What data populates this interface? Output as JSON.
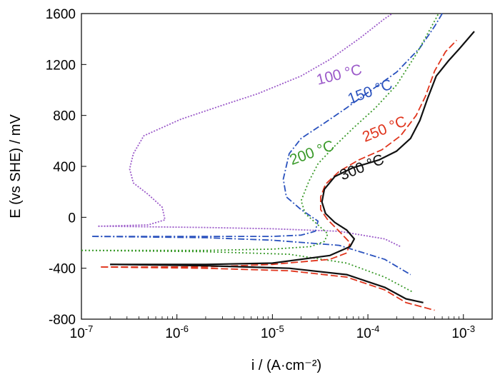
{
  "chart_data": {
    "type": "line",
    "xscale": "log",
    "xlim": [
      1e-07,
      0.002
    ],
    "ylim": [
      -800,
      1600
    ],
    "grid": false,
    "xlabel": "i / (A·cm⁻²)",
    "ylabel": "E (vs SHE) / mV",
    "x_ticks": [
      {
        "value": 1e-07,
        "base": "10",
        "exp": "-7"
      },
      {
        "value": 1e-06,
        "base": "10",
        "exp": "-6"
      },
      {
        "value": 1e-05,
        "base": "10",
        "exp": "-5"
      },
      {
        "value": 0.0001,
        "base": "10",
        "exp": "-4"
      },
      {
        "value": 0.001,
        "base": "10",
        "exp": "-3"
      }
    ],
    "y_ticks": [
      {
        "value": -800,
        "label": "-800"
      },
      {
        "value": -400,
        "label": "-400"
      },
      {
        "value": 0,
        "label": "0"
      },
      {
        "value": 400,
        "label": "400"
      },
      {
        "value": 800,
        "label": "800"
      },
      {
        "value": 1200,
        "label": "1200"
      },
      {
        "value": 1600,
        "label": "1600"
      }
    ],
    "series": [
      {
        "name": "100 °C",
        "color": "#9b59c9",
        "dash": "2,2",
        "label_pos": [
          3e-05,
          1040
        ],
        "label_rotate": -14,
        "anodic": [
          [
            1.5e-07,
            -70
          ],
          [
            5e-07,
            -60
          ],
          [
            7.5e-07,
            -20
          ],
          [
            7e-07,
            80
          ],
          [
            5e-07,
            180
          ],
          [
            3.5e-07,
            270
          ],
          [
            3.2e-07,
            380
          ],
          [
            3.5e-07,
            500
          ],
          [
            4.5e-07,
            640
          ],
          [
            1.1e-06,
            770
          ],
          [
            3e-06,
            880
          ],
          [
            7e-06,
            970
          ],
          [
            2e-05,
            1110
          ],
          [
            4e-05,
            1240
          ],
          [
            8e-05,
            1400
          ],
          [
            0.00015,
            1560
          ],
          [
            0.00018,
            1600
          ]
        ],
        "cathodic": [
          [
            1.5e-07,
            -70
          ],
          [
            2e-06,
            -80
          ],
          [
            1e-05,
            -90
          ],
          [
            5e-05,
            -110
          ],
          [
            0.00015,
            -170
          ],
          [
            0.00022,
            -230
          ]
        ]
      },
      {
        "name": "150 °C",
        "color": "#2a52be",
        "dash": "9,3,2,3",
        "label_pos": [
          6.5e-05,
          890
        ],
        "label_rotate": -20,
        "anodic": [
          [
            1.3e-07,
            -150
          ],
          [
            1e-06,
            -150
          ],
          [
            1e-05,
            -150
          ],
          [
            2e-05,
            -140
          ],
          [
            2.8e-05,
            -110
          ],
          [
            3e-05,
            -30
          ],
          [
            2e-05,
            60
          ],
          [
            1.4e-05,
            160
          ],
          [
            1.3e-05,
            300
          ],
          [
            1.5e-05,
            500
          ],
          [
            2e-05,
            620
          ],
          [
            3.5e-05,
            740
          ],
          [
            6e-05,
            860
          ],
          [
            0.0001,
            980
          ],
          [
            0.0002,
            1140
          ],
          [
            0.00035,
            1330
          ],
          [
            0.0005,
            1500
          ],
          [
            0.0006,
            1600
          ]
        ],
        "cathodic": [
          [
            1.3e-07,
            -150
          ],
          [
            2e-06,
            -160
          ],
          [
            1e-05,
            -180
          ],
          [
            5e-05,
            -220
          ],
          [
            0.00015,
            -330
          ],
          [
            0.00028,
            -450
          ]
        ]
      },
      {
        "name": "200 °C",
        "color": "#3a9a2a",
        "dash": "2,3",
        "label_pos": [
          1.6e-05,
          410
        ],
        "label_rotate": -20,
        "anodic": [
          [
            1e-07,
            -260
          ],
          [
            2e-06,
            -260
          ],
          [
            1e-05,
            -250
          ],
          [
            2.5e-05,
            -230
          ],
          [
            3.5e-05,
            -190
          ],
          [
            3.8e-05,
            -130
          ],
          [
            3e-05,
            -60
          ],
          [
            2.2e-05,
            30
          ],
          [
            2e-05,
            130
          ],
          [
            2.4e-05,
            280
          ],
          [
            3e-05,
            420
          ],
          [
            4.5e-05,
            560
          ],
          [
            7e-05,
            700
          ],
          [
            0.00012,
            860
          ],
          [
            0.0002,
            1040
          ],
          [
            0.00032,
            1280
          ],
          [
            0.00045,
            1480
          ],
          [
            0.00055,
            1600
          ]
        ],
        "cathodic": [
          [
            1e-07,
            -260
          ],
          [
            2e-06,
            -270
          ],
          [
            1.5e-05,
            -290
          ],
          [
            6e-05,
            -360
          ],
          [
            0.00015,
            -470
          ],
          [
            0.0003,
            -590
          ]
        ]
      },
      {
        "name": "250 °C",
        "color": "#e0341c",
        "dash": "10,4",
        "label_pos": [
          9.3e-05,
          590
        ],
        "label_rotate": -22,
        "anodic": [
          [
            1.6e-07,
            -390
          ],
          [
            2e-06,
            -390
          ],
          [
            1e-05,
            -370
          ],
          [
            4e-05,
            -330
          ],
          [
            6e-05,
            -280
          ],
          [
            6.5e-05,
            -200
          ],
          [
            5e-05,
            -110
          ],
          [
            3.8e-05,
            -20
          ],
          [
            3.2e-05,
            60
          ],
          [
            3.2e-05,
            160
          ],
          [
            3.6e-05,
            260
          ],
          [
            5e-05,
            360
          ],
          [
            8e-05,
            450
          ],
          [
            0.00014,
            530
          ],
          [
            0.00022,
            640
          ],
          [
            0.00032,
            800
          ],
          [
            0.0004,
            950
          ],
          [
            0.0005,
            1150
          ],
          [
            0.00065,
            1300
          ],
          [
            0.00085,
            1390
          ]
        ],
        "cathodic": [
          [
            1.6e-07,
            -390
          ],
          [
            2e-06,
            -400
          ],
          [
            1.5e-05,
            -420
          ],
          [
            6e-05,
            -470
          ],
          [
            0.00015,
            -570
          ],
          [
            0.00025,
            -670
          ],
          [
            0.0005,
            -730
          ]
        ]
      },
      {
        "name": "300 °C",
        "color": "#111111",
        "dash": "",
        "label_pos": [
          5.4e-05,
          290
        ],
        "label_rotate": -22,
        "anodic": [
          [
            2e-07,
            -370
          ],
          [
            2e-06,
            -370
          ],
          [
            1e-05,
            -360
          ],
          [
            4e-05,
            -300
          ],
          [
            6.5e-05,
            -230
          ],
          [
            7.2e-05,
            -170
          ],
          [
            6e-05,
            -100
          ],
          [
            4.5e-05,
            -40
          ],
          [
            3.6e-05,
            30
          ],
          [
            3.3e-05,
            120
          ],
          [
            3.5e-05,
            220
          ],
          [
            4.5e-05,
            320
          ],
          [
            7e-05,
            390
          ],
          [
            0.00013,
            450
          ],
          [
            0.0002,
            520
          ],
          [
            0.00028,
            620
          ],
          [
            0.00035,
            760
          ],
          [
            0.00042,
            930
          ],
          [
            0.00052,
            1110
          ],
          [
            0.0007,
            1230
          ],
          [
            0.0009,
            1320
          ],
          [
            0.0013,
            1460
          ]
        ],
        "cathodic": [
          [
            2e-07,
            -370
          ],
          [
            2e-06,
            -380
          ],
          [
            1.5e-05,
            -400
          ],
          [
            6e-05,
            -450
          ],
          [
            0.00015,
            -550
          ],
          [
            0.00025,
            -640
          ],
          [
            0.00038,
            -670
          ]
        ]
      }
    ]
  }
}
